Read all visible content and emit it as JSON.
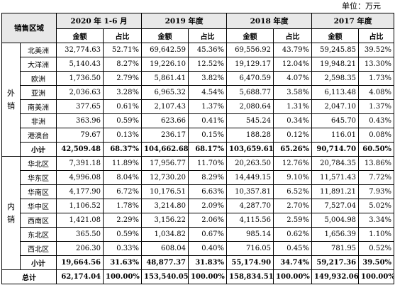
{
  "unit_label": "单位：万元",
  "header": {
    "region_label": "销售区域",
    "periods": [
      "2020 年 1-6 月",
      "2019 年度",
      "2018 年度",
      "2017 年度"
    ],
    "amount_label": "金额",
    "ratio_label": "占比"
  },
  "domestic_foreign": [
    {
      "group_label": "外\n销",
      "rows": [
        {
          "region": "北美洲",
          "values": [
            "32,774.63",
            "52.71%",
            "69,642.59",
            "45.36%",
            "69,556.92",
            "43.79%",
            "59,245.85",
            "39.52%"
          ]
        },
        {
          "region": "大洋洲",
          "values": [
            "5,140.43",
            "8.27%",
            "19,226.10",
            "12.52%",
            "19,129.17",
            "12.04%",
            "19,948.21",
            "13.30%"
          ]
        },
        {
          "region": "欧洲",
          "values": [
            "1,736.50",
            "2.79%",
            "5,861.41",
            "3.82%",
            "6,470.59",
            "4.07%",
            "2,598.35",
            "1.73%"
          ]
        },
        {
          "region": "亚洲",
          "values": [
            "2,036.63",
            "3.28%",
            "6,965.32",
            "4.54%",
            "5,688.77",
            "3.58%",
            "6,113.48",
            "4.08%"
          ]
        },
        {
          "region": "南美洲",
          "values": [
            "377.65",
            "0.61%",
            "2,107.43",
            "1.37%",
            "2,080.64",
            "1.31%",
            "2,047.10",
            "1.37%"
          ]
        },
        {
          "region": "非洲",
          "values": [
            "363.96",
            "0.59%",
            "623.66",
            "0.41%",
            "545.24",
            "0.34%",
            "645.70",
            "0.43%"
          ]
        },
        {
          "region": "港澳台",
          "values": [
            "79.67",
            "0.13%",
            "236.17",
            "0.15%",
            "188.28",
            "0.12%",
            "116.01",
            "0.08%"
          ]
        }
      ],
      "subtotal": {
        "label": "小计",
        "values": [
          "42,509.48",
          "68.37%",
          "104,662.68",
          "68.17%",
          "103,659.61",
          "65.26%",
          "90,714.70",
          "60.50%"
        ]
      }
    },
    {
      "group_label": "内\n销",
      "rows": [
        {
          "region": "华北区",
          "values": [
            "7,391.18",
            "11.89%",
            "17,956.77",
            "11.70%",
            "20,263.50",
            "12.76%",
            "20,784.35",
            "13.86%"
          ]
        },
        {
          "region": "华东区",
          "values": [
            "4,996.08",
            "8.04%",
            "12,730.20",
            "8.29%",
            "14,449.15",
            "9.10%",
            "11,571.43",
            "7.72%"
          ]
        },
        {
          "region": "华南区",
          "values": [
            "4,177.90",
            "6.72%",
            "10,176.51",
            "6.63%",
            "10,357.81",
            "6.52%",
            "11,891.21",
            "7.93%"
          ]
        },
        {
          "region": "华中区",
          "values": [
            "1,106.52",
            "1.78%",
            "3,214.80",
            "2.09%",
            "4,287.70",
            "2.70%",
            "7,527.04",
            "5.02%"
          ]
        },
        {
          "region": "西南区",
          "values": [
            "1,421.08",
            "2.29%",
            "3,156.22",
            "2.06%",
            "4,115.56",
            "2.59%",
            "5,004.98",
            "3.34%"
          ]
        },
        {
          "region": "东北区",
          "values": [
            "365.50",
            "0.59%",
            "1,034.82",
            "0.67%",
            "985.14",
            "0.62%",
            "1,656.39",
            "1.10%"
          ]
        },
        {
          "region": "西北区",
          "values": [
            "206.30",
            "0.33%",
            "608.04",
            "0.40%",
            "716.05",
            "0.45%",
            "781.95",
            "0.52%"
          ]
        }
      ],
      "subtotal": {
        "label": "小计",
        "values": [
          "19,664.56",
          "31.63%",
          "48,877.37",
          "31.83%",
          "55,174.90",
          "34.74%",
          "59,217.36",
          "39.50%"
        ]
      }
    }
  ],
  "total": {
    "label": "总计",
    "values": [
      "62,174.04",
      "100.00%",
      "153,540.05",
      "100.00%",
      "158,834.51",
      "100.00%",
      "149,932.06",
      "100.00%"
    ]
  }
}
